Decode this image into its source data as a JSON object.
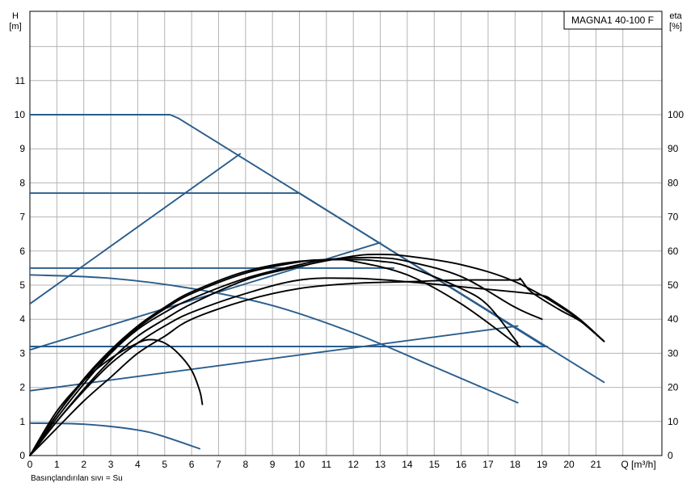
{
  "chart_data": {
    "type": "line",
    "title": "MAGNA1 40-100 F",
    "xlabel": "Q [m³/h]",
    "ylabel_top": "H",
    "ylabel_unit": "[m]",
    "y2label_top": "eta",
    "y2label_unit": "[%]",
    "xlim": [
      0,
      23
    ],
    "ylim": [
      0,
      12
    ],
    "y2lim": [
      0,
      120
    ],
    "xticks": [
      "0",
      "1",
      "2",
      "3",
      "4",
      "5",
      "6",
      "7",
      "8",
      "9",
      "10",
      "11",
      "12",
      "13",
      "14",
      "15",
      "16",
      "17",
      "18",
      "19",
      "20",
      "21"
    ],
    "yticks": [
      "0",
      "1",
      "2",
      "3",
      "4",
      "5",
      "6",
      "7",
      "8",
      "9",
      "10",
      "11"
    ],
    "y2ticks": [
      "0",
      "10",
      "20",
      "30",
      "40",
      "50",
      "60",
      "70",
      "80",
      "90",
      "100"
    ],
    "grid": true,
    "footnote": "Basınçlandırılan sıvı = Su",
    "colors": {
      "pump_curves": "#2a5d8c",
      "efficiency_curves": "#000000"
    },
    "series": [
      {
        "kind": "pump",
        "points": [
          [
            0,
            10
          ],
          [
            5.2,
            10
          ],
          [
            5.5,
            9.9
          ],
          [
            21.3,
            2.15
          ]
        ]
      },
      {
        "kind": "pump",
        "points": [
          [
            0,
            7.7
          ],
          [
            10,
            7.7
          ],
          [
            19.1,
            3.2
          ]
        ]
      },
      {
        "kind": "pump",
        "points": [
          [
            0,
            5.5
          ],
          [
            13.5,
            5.5
          ]
        ]
      },
      {
        "kind": "pump",
        "points": [
          [
            0,
            3.2
          ],
          [
            19.2,
            3.2
          ]
        ]
      },
      {
        "kind": "pump",
        "points": [
          [
            0,
            4.45
          ],
          [
            7.8,
            8.85
          ]
        ]
      },
      {
        "kind": "pump",
        "points": [
          [
            0,
            3.1
          ],
          [
            13,
            6.25
          ]
        ]
      },
      {
        "kind": "pump",
        "points": [
          [
            0,
            1.9
          ],
          [
            18.1,
            3.8
          ]
        ]
      },
      {
        "kind": "pump",
        "points": [
          [
            0,
            5.3
          ],
          [
            3,
            5.2
          ],
          [
            6,
            4.9
          ],
          [
            9,
            4.4
          ],
          [
            12,
            3.6
          ],
          [
            15,
            2.6
          ],
          [
            18.1,
            1.55
          ]
        ]
      },
      {
        "kind": "pump",
        "points": [
          [
            0,
            0.95
          ],
          [
            2,
            0.92
          ],
          [
            4,
            0.75
          ],
          [
            5,
            0.55
          ],
          [
            6.3,
            0.2
          ]
        ]
      },
      {
        "kind": "efficiency",
        "points": [
          [
            0,
            0
          ],
          [
            1,
            8
          ],
          [
            2,
            16
          ],
          [
            3,
            23
          ],
          [
            4,
            30
          ],
          [
            5,
            35
          ],
          [
            6,
            40
          ],
          [
            8,
            45.5
          ],
          [
            10,
            49
          ],
          [
            12,
            50.5
          ],
          [
            14,
            51
          ],
          [
            16,
            51.5
          ],
          [
            18,
            51.5
          ],
          [
            18.2,
            51.8
          ],
          [
            18.6,
            48
          ],
          [
            19.6,
            43
          ],
          [
            20.5,
            39
          ],
          [
            21.3,
            33.5
          ]
        ]
      },
      {
        "kind": "efficiency",
        "points": [
          [
            0,
            0
          ],
          [
            1,
            10
          ],
          [
            2,
            19
          ],
          [
            3,
            27
          ],
          [
            4,
            33
          ],
          [
            5,
            38
          ],
          [
            6,
            42
          ],
          [
            8,
            47.5
          ],
          [
            10,
            51.5
          ],
          [
            12,
            52
          ],
          [
            14,
            51
          ],
          [
            16,
            49.5
          ],
          [
            18,
            48
          ],
          [
            19,
            47
          ],
          [
            19.4,
            45.5
          ],
          [
            20.4,
            40
          ],
          [
            21.3,
            33.5
          ]
        ]
      },
      {
        "kind": "efficiency",
        "points": [
          [
            0,
            0
          ],
          [
            1,
            11
          ],
          [
            2,
            21
          ],
          [
            3,
            30
          ],
          [
            4,
            37
          ],
          [
            5,
            42
          ],
          [
            6,
            46
          ],
          [
            8,
            52
          ],
          [
            10,
            56
          ],
          [
            11,
            57.5
          ],
          [
            12,
            57
          ],
          [
            14,
            53
          ],
          [
            16,
            44.5
          ],
          [
            18,
            33
          ],
          [
            18.1,
            32.3
          ]
        ]
      },
      {
        "kind": "efficiency",
        "points": [
          [
            0,
            0
          ],
          [
            1,
            10
          ],
          [
            2,
            19.5
          ],
          [
            3,
            28
          ],
          [
            4,
            35
          ],
          [
            5,
            40
          ],
          [
            6,
            44.5
          ],
          [
            8,
            51.5
          ],
          [
            10,
            55.5
          ],
          [
            12,
            58.5
          ],
          [
            13,
            59
          ],
          [
            14,
            58.5
          ],
          [
            16,
            56
          ],
          [
            18,
            51
          ],
          [
            20,
            42
          ],
          [
            21.3,
            33.5
          ]
        ]
      },
      {
        "kind": "efficiency",
        "points": [
          [
            0,
            0
          ],
          [
            1,
            12
          ],
          [
            2,
            22
          ],
          [
            3,
            30.5
          ],
          [
            4,
            37.5
          ],
          [
            5,
            43
          ],
          [
            6,
            47.5
          ],
          [
            8,
            53.5
          ],
          [
            10,
            56.8
          ],
          [
            11,
            57.5
          ],
          [
            12,
            58
          ],
          [
            13,
            58
          ],
          [
            14,
            57
          ],
          [
            16,
            52.5
          ],
          [
            18,
            43.5
          ],
          [
            19,
            40
          ]
        ]
      },
      {
        "kind": "efficiency",
        "points": [
          [
            0,
            0
          ],
          [
            1,
            12
          ],
          [
            2,
            22.5
          ],
          [
            3,
            31
          ],
          [
            4,
            38
          ],
          [
            5,
            43.5
          ],
          [
            6,
            48
          ],
          [
            8,
            54
          ],
          [
            10,
            57
          ],
          [
            12,
            57.5
          ],
          [
            13,
            57
          ],
          [
            14,
            55.5
          ],
          [
            16,
            49
          ],
          [
            17,
            44
          ],
          [
            18.1,
            33
          ]
        ]
      },
      {
        "kind": "efficiency",
        "points": [
          [
            0,
            0
          ],
          [
            1,
            13
          ],
          [
            2,
            22
          ],
          [
            3,
            28.5
          ],
          [
            4,
            33
          ],
          [
            4.5,
            34
          ],
          [
            5,
            33
          ],
          [
            5.5,
            30
          ],
          [
            6,
            25
          ],
          [
            6.3,
            19
          ],
          [
            6.4,
            15
          ]
        ]
      }
    ]
  }
}
